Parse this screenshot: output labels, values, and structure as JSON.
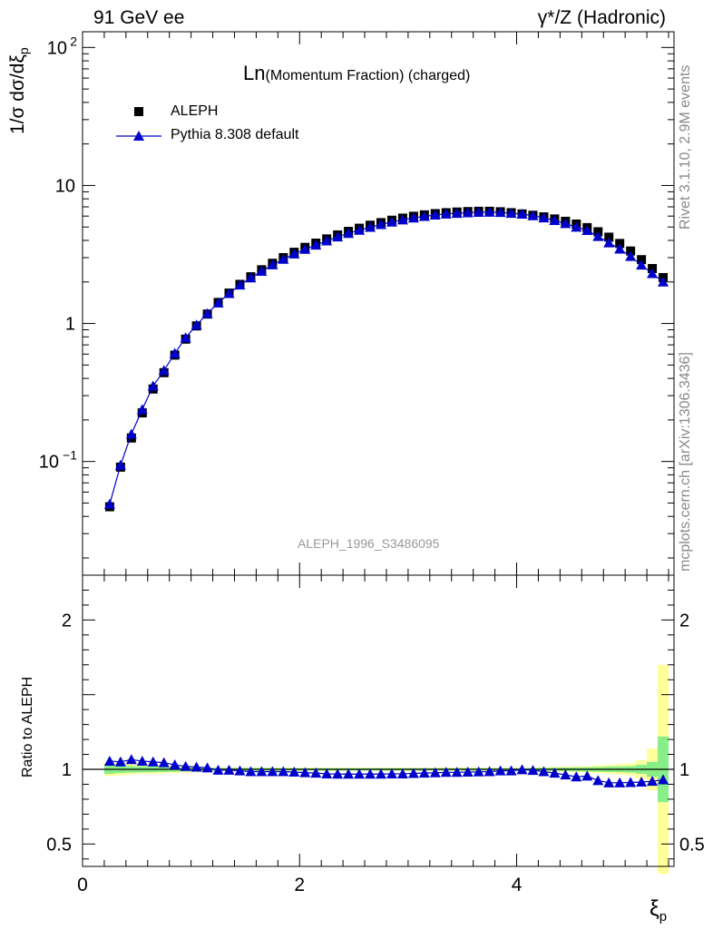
{
  "header": {
    "left": "91 GeV ee",
    "right": "γ*/Z (Hadronic)"
  },
  "side_labels": {
    "rivet": "Rivet 3.1.10,  2.9M events",
    "mcplots": "mcplots.cern.ch [arXiv:1306.3436]"
  },
  "chart_data": [
    {
      "type": "scatter",
      "title_main": "Ln",
      "title_rest": "(Momentum Fraction) (charged)",
      "watermark": "ALEPH_1996_S3486095",
      "ylabel": "1/σ dσ/dξ",
      "ylabel_sub": "p",
      "yscale": "log",
      "ylim": [
        0.015,
        130
      ],
      "xlim": [
        0,
        5.45
      ],
      "yticks": [
        {
          "value": 0.1,
          "label": "10",
          "sup": "−1"
        },
        {
          "value": 1,
          "label": "1",
          "sup": ""
        },
        {
          "value": 10,
          "label": "10",
          "sup": ""
        },
        {
          "value": 100,
          "label": "10",
          "sup": "2"
        }
      ],
      "legend": [
        {
          "name": "ALEPH",
          "marker": "square",
          "color": "#000000"
        },
        {
          "name": "Pythia 8.308 default",
          "marker": "triangle",
          "color": "#0000cc"
        }
      ],
      "x": [
        0.25,
        0.35,
        0.45,
        0.55,
        0.65,
        0.75,
        0.85,
        0.95,
        1.05,
        1.15,
        1.25,
        1.35,
        1.45,
        1.55,
        1.65,
        1.75,
        1.85,
        1.95,
        2.05,
        2.15,
        2.25,
        2.35,
        2.45,
        2.55,
        2.65,
        2.75,
        2.85,
        2.95,
        3.05,
        3.15,
        3.25,
        3.35,
        3.45,
        3.55,
        3.65,
        3.75,
        3.85,
        3.95,
        4.05,
        4.15,
        4.25,
        4.35,
        4.45,
        4.55,
        4.65,
        4.75,
        4.85,
        4.95,
        5.05,
        5.15,
        5.25,
        5.35
      ],
      "series": [
        {
          "name": "ALEPH",
          "values": [
            0.047,
            0.091,
            0.148,
            0.225,
            0.335,
            0.44,
            0.59,
            0.77,
            0.96,
            1.17,
            1.42,
            1.66,
            1.92,
            2.18,
            2.45,
            2.73,
            3.0,
            3.28,
            3.56,
            3.82,
            4.1,
            4.38,
            4.65,
            4.9,
            5.15,
            5.38,
            5.6,
            5.8,
            5.98,
            6.12,
            6.25,
            6.35,
            6.42,
            6.47,
            6.5,
            6.5,
            6.45,
            6.35,
            6.22,
            6.08,
            5.92,
            5.72,
            5.5,
            5.25,
            4.95,
            4.62,
            4.22,
            3.8,
            3.35,
            2.9,
            2.5,
            2.15
          ]
        },
        {
          "name": "Pythia 8.308 default",
          "values": [
            0.049,
            0.094,
            0.158,
            0.238,
            0.352,
            0.456,
            0.607,
            0.788,
            0.975,
            1.18,
            1.41,
            1.65,
            1.9,
            2.14,
            2.39,
            2.66,
            2.92,
            3.19,
            3.45,
            3.7,
            3.97,
            4.24,
            4.5,
            4.74,
            4.98,
            5.21,
            5.43,
            5.63,
            5.82,
            5.97,
            6.11,
            6.22,
            6.29,
            6.35,
            6.39,
            6.41,
            6.38,
            6.29,
            6.2,
            6.04,
            5.83,
            5.58,
            5.3,
            4.99,
            4.72,
            4.27,
            3.84,
            3.46,
            3.06,
            2.65,
            2.3,
            2.0
          ]
        }
      ]
    },
    {
      "type": "line",
      "ylabel": "Ratio to ALEPH",
      "xlabel": "ξ",
      "xlabel_sub": "p",
      "ylim": [
        0.35,
        2.3
      ],
      "xlim": [
        0,
        5.45
      ],
      "xticks": [
        0,
        2,
        4
      ],
      "yticks": [
        0.5,
        1,
        2
      ],
      "reference": 1,
      "band_colors": {
        "inner": "#88ee88",
        "outer": "#ffff99"
      },
      "bin_width": 0.1,
      "bands": {
        "x": [
          0.25,
          0.35,
          0.45,
          0.55,
          0.65,
          0.75,
          0.85,
          0.95,
          1.05,
          1.15,
          1.25,
          1.35,
          1.45,
          1.55,
          1.65,
          1.75,
          1.85,
          1.95,
          2.05,
          2.15,
          2.25,
          2.35,
          2.45,
          2.55,
          2.65,
          2.75,
          2.85,
          2.95,
          3.05,
          3.15,
          3.25,
          3.35,
          3.45,
          3.55,
          3.65,
          3.75,
          3.85,
          3.95,
          4.05,
          4.15,
          4.25,
          4.35,
          4.45,
          4.55,
          4.65,
          4.75,
          4.85,
          4.95,
          5.05,
          5.15,
          5.25,
          5.35
        ],
        "inner": [
          0.03,
          0.025,
          0.022,
          0.02,
          0.02,
          0.018,
          0.016,
          0.014,
          0.012,
          0.01,
          0.01,
          0.009,
          0.009,
          0.009,
          0.009,
          0.009,
          0.008,
          0.008,
          0.008,
          0.008,
          0.008,
          0.008,
          0.008,
          0.008,
          0.008,
          0.008,
          0.008,
          0.008,
          0.008,
          0.008,
          0.008,
          0.008,
          0.008,
          0.008,
          0.008,
          0.008,
          0.008,
          0.008,
          0.008,
          0.009,
          0.01,
          0.011,
          0.012,
          0.013,
          0.014,
          0.016,
          0.018,
          0.02,
          0.022,
          0.03,
          0.05,
          0.22
        ],
        "outer": [
          0.045,
          0.04,
          0.035,
          0.03,
          0.03,
          0.027,
          0.024,
          0.02,
          0.018,
          0.015,
          0.014,
          0.012,
          0.012,
          0.012,
          0.012,
          0.012,
          0.011,
          0.011,
          0.011,
          0.011,
          0.011,
          0.011,
          0.011,
          0.011,
          0.011,
          0.011,
          0.011,
          0.011,
          0.011,
          0.011,
          0.011,
          0.011,
          0.011,
          0.011,
          0.011,
          0.011,
          0.011,
          0.011,
          0.011,
          0.012,
          0.014,
          0.016,
          0.018,
          0.02,
          0.022,
          0.026,
          0.03,
          0.035,
          0.04,
          0.06,
          0.14,
          0.7
        ]
      },
      "ratio": [
        1.055,
        1.05,
        1.065,
        1.055,
        1.05,
        1.045,
        1.03,
        1.02,
        1.015,
        1.01,
        0.995,
        0.995,
        0.99,
        0.985,
        0.985,
        0.985,
        0.985,
        0.982,
        0.978,
        0.975,
        0.97,
        0.968,
        0.968,
        0.968,
        0.968,
        0.968,
        0.97,
        0.97,
        0.973,
        0.975,
        0.977,
        0.98,
        0.98,
        0.982,
        0.983,
        0.985,
        0.99,
        0.99,
        0.998,
        0.993,
        0.985,
        0.975,
        0.963,
        0.95,
        0.955,
        0.925,
        0.91,
        0.91,
        0.912,
        0.915,
        0.92,
        0.93
      ]
    }
  ]
}
